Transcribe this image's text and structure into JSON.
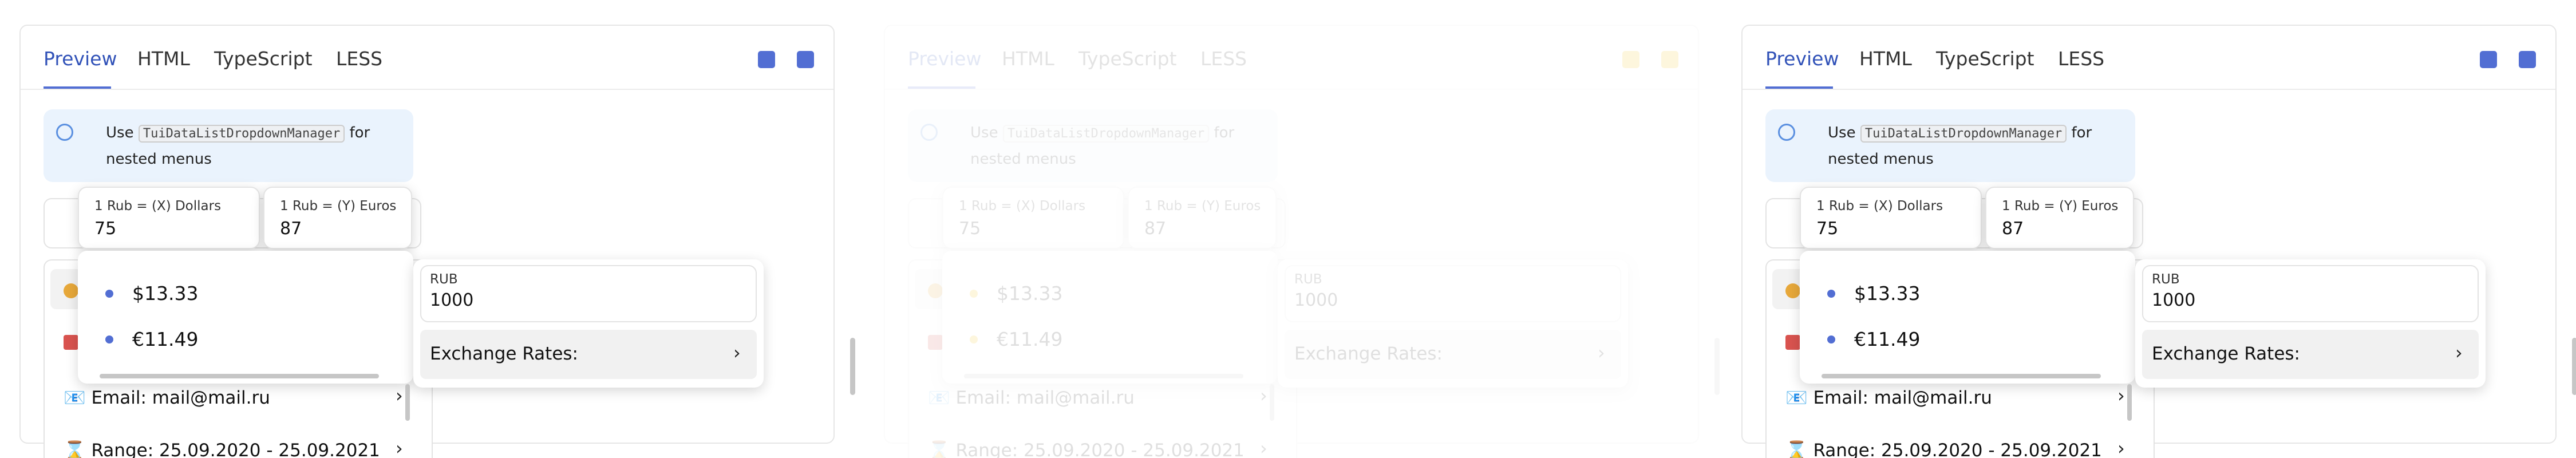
{
  "tabs": [
    "Preview",
    "HTML",
    "TypeScript",
    "LESS"
  ],
  "notice": {
    "before": "Use",
    "code": "TuiDataListDropdownManager",
    "after": "for",
    "line2": "nested menus"
  },
  "rates": [
    {
      "label": "1 Rub = (X) Dollars",
      "value": "75"
    },
    {
      "label": "1 Rub = (Y) Euros",
      "value": "87"
    }
  ],
  "converted": [
    "$13.33",
    "€11.49"
  ],
  "rub": {
    "label": "RUB",
    "value": "1000"
  },
  "exchange": "Exchange Rates:",
  "menu": [
    "📧 Email: mail@mail.ru",
    "⌛ Range: 25.09.2020 - 25.09.2021"
  ]
}
